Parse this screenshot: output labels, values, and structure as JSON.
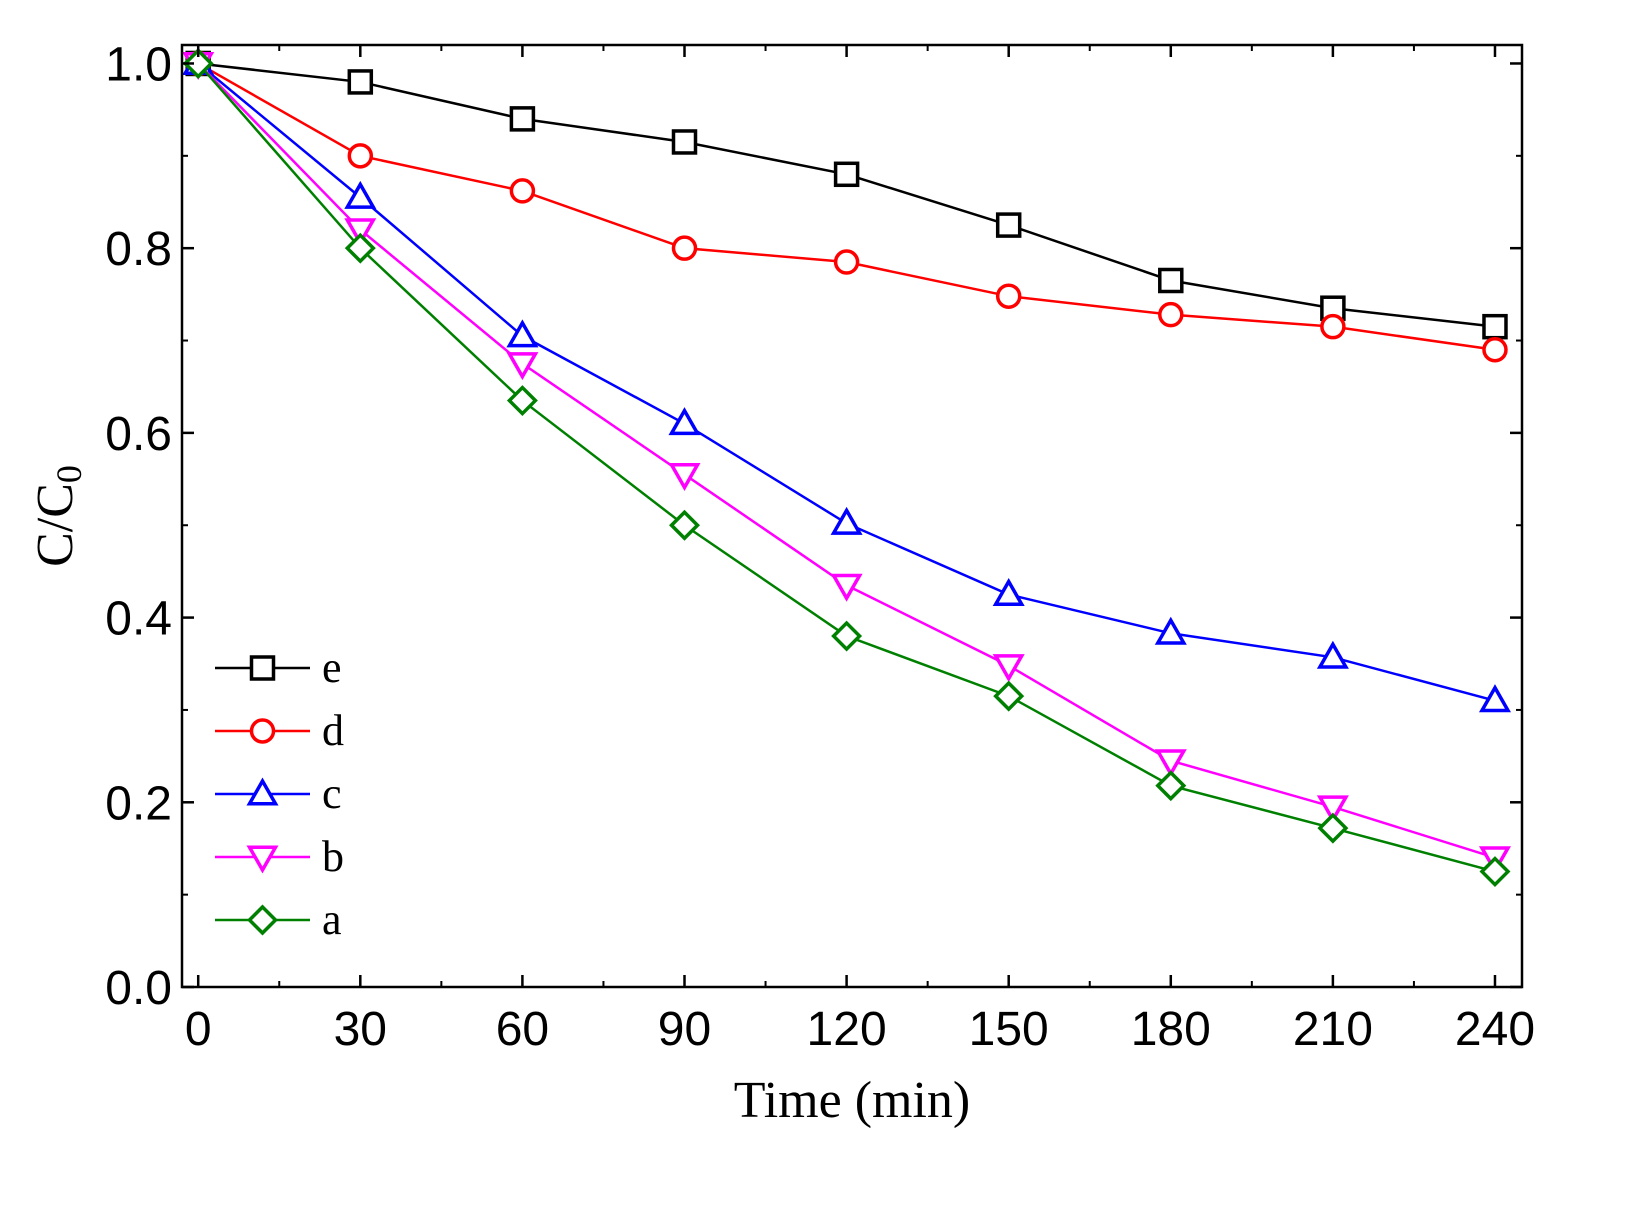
{
  "chart_data": {
    "type": "line",
    "title": "",
    "xlabel": "Time (min)",
    "ylabel": {
      "main": "C/C",
      "subscript": "0"
    },
    "xlim": [
      -3,
      245
    ],
    "ylim": [
      0.0,
      1.02
    ],
    "xticks": [
      0,
      30,
      60,
      90,
      120,
      150,
      180,
      210,
      240
    ],
    "xtick_labels": [
      "0",
      "30",
      "60",
      "90",
      "120",
      "150",
      "180",
      "210",
      "240"
    ],
    "yticks": [
      0.0,
      0.2,
      0.4,
      0.6,
      0.8,
      1.0
    ],
    "ytick_labels": [
      "0.0",
      "0.2",
      "0.4",
      "0.6",
      "0.8",
      "1.0"
    ],
    "grid": false,
    "legend_position": "lower-left",
    "x": [
      0,
      30,
      60,
      90,
      120,
      150,
      180,
      210,
      240
    ],
    "series": [
      {
        "name": "e",
        "marker": "square",
        "color": "#000000",
        "values": [
          1.0,
          0.98,
          0.94,
          0.915,
          0.88,
          0.825,
          0.765,
          0.735,
          0.715
        ]
      },
      {
        "name": "d",
        "marker": "circle",
        "color": "#ff0000",
        "values": [
          1.0,
          0.9,
          0.862,
          0.8,
          0.785,
          0.748,
          0.728,
          0.715,
          0.69
        ]
      },
      {
        "name": "c",
        "marker": "triangle-up",
        "color": "#0000ff",
        "values": [
          1.0,
          0.855,
          0.705,
          0.61,
          0.502,
          0.425,
          0.383,
          0.357,
          0.31
        ]
      },
      {
        "name": "b",
        "marker": "triangle-down",
        "color": "#ff00ff",
        "values": [
          1.0,
          0.82,
          0.675,
          0.555,
          0.435,
          0.348,
          0.245,
          0.195,
          0.14
        ]
      },
      {
        "name": "a",
        "marker": "diamond",
        "color": "#008000",
        "values": [
          1.0,
          0.8,
          0.635,
          0.5,
          0.38,
          0.315,
          0.218,
          0.172,
          0.125
        ]
      }
    ]
  }
}
